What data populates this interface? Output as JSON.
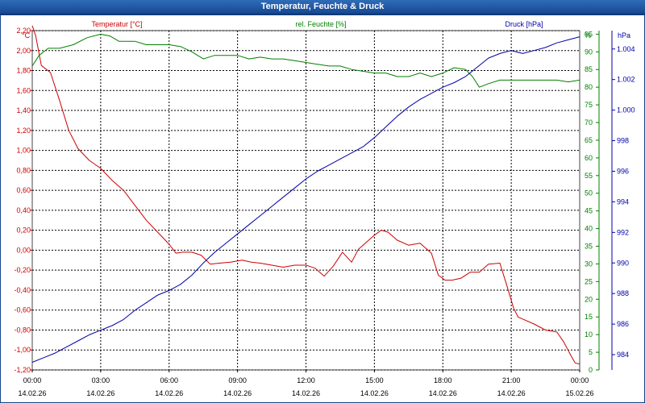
{
  "window": {
    "title": "Temperatur, Feuchte & Druck"
  },
  "chart_data": {
    "type": "line",
    "title": "Temperatur, Feuchte & Druck",
    "colors": {
      "temperature": "#cc0000",
      "humidity": "#008000",
      "pressure": "#0000aa"
    },
    "grid": true,
    "x": {
      "range_hours": [
        0,
        24
      ],
      "ticks": [
        {
          "time": "00:00",
          "date": "14.02.26"
        },
        {
          "time": "03:00",
          "date": "14.02.26"
        },
        {
          "time": "06:00",
          "date": "14.02.26"
        },
        {
          "time": "09:00",
          "date": "14.02.26"
        },
        {
          "time": "12:00",
          "date": "14.02.26"
        },
        {
          "time": "15:00",
          "date": "14.02.26"
        },
        {
          "time": "18:00",
          "date": "14.02.26"
        },
        {
          "time": "21:00",
          "date": "14.02.26"
        },
        {
          "time": "00:00",
          "date": "15.02.26"
        }
      ]
    },
    "axes": {
      "temperature": {
        "label": "Temperatur [°C]",
        "unit": "°C",
        "range": [
          -1.2,
          2.2
        ],
        "ticks": [
          "2,20",
          "2,00",
          "1,80",
          "1,60",
          "1,40",
          "1,20",
          "1,00",
          "0,80",
          "0,60",
          "0,40",
          "0,20",
          "0,00",
          "-0,20",
          "-0,40",
          "-0,60",
          "-0,80",
          "-1,00",
          "-1,20"
        ]
      },
      "humidity": {
        "label": "rel. Feuchte [%]",
        "unit": "%",
        "range": [
          0,
          96
        ],
        "ticks": [
          "95",
          "90",
          "85",
          "80",
          "75",
          "70",
          "65",
          "60",
          "55",
          "50",
          "45",
          "40",
          "35",
          "30",
          "25",
          "20",
          "15",
          "10",
          "5",
          "0"
        ]
      },
      "pressure": {
        "label": "Druck [hPa]",
        "unit": "hPa",
        "range": [
          983,
          1005.2
        ],
        "ticks": [
          "1.004",
          "1.002",
          "1.000",
          "998",
          "996",
          "994",
          "992",
          "990",
          "988",
          "986",
          "984"
        ]
      }
    },
    "series": [
      {
        "name": "Temperatur [°C]",
        "axis": "temperature",
        "x": [
          0,
          0.15,
          0.4,
          0.8,
          1.2,
          1.6,
          2.0,
          2.5,
          3.0,
          3.5,
          4.0,
          4.5,
          5.0,
          5.5,
          6.0,
          6.3,
          6.6,
          7.0,
          7.4,
          7.8,
          8.2,
          8.7,
          9.2,
          9.6,
          10.0,
          10.5,
          11.0,
          11.5,
          12.0,
          12.4,
          12.8,
          13.2,
          13.6,
          14.0,
          14.3,
          14.6,
          15.0,
          15.3,
          15.6,
          16.0,
          16.5,
          17.0,
          17.5,
          17.8,
          18.1,
          18.4,
          18.8,
          19.2,
          19.6,
          20.0,
          20.5,
          20.8,
          21.1,
          21.3,
          21.6,
          22.0,
          22.5,
          23.0,
          23.3,
          23.6,
          23.8,
          24.0
        ],
        "values": [
          2.25,
          2.15,
          1.85,
          1.78,
          1.5,
          1.2,
          1.02,
          0.9,
          0.82,
          0.7,
          0.6,
          0.45,
          0.3,
          0.18,
          0.06,
          -0.03,
          -0.02,
          -0.02,
          -0.05,
          -0.14,
          -0.13,
          -0.12,
          -0.1,
          -0.12,
          -0.13,
          -0.15,
          -0.17,
          -0.15,
          -0.15,
          -0.18,
          -0.26,
          -0.16,
          -0.02,
          -0.12,
          0.01,
          0.07,
          0.15,
          0.2,
          0.18,
          0.1,
          0.05,
          0.07,
          -0.03,
          -0.25,
          -0.3,
          -0.3,
          -0.28,
          -0.22,
          -0.22,
          -0.14,
          -0.13,
          -0.35,
          -0.58,
          -0.67,
          -0.7,
          -0.74,
          -0.8,
          -0.82,
          -0.92,
          -1.05,
          -1.13,
          -1.14
        ]
      },
      {
        "name": "rel. Feuchte [%]",
        "axis": "humidity",
        "x": [
          0,
          0.3,
          0.7,
          1.2,
          1.8,
          2.4,
          3.0,
          3.4,
          3.8,
          4.5,
          5.0,
          5.5,
          6.0,
          6.5,
          7.0,
          7.5,
          8.0,
          8.5,
          9.0,
          9.5,
          10.0,
          10.5,
          11.0,
          11.5,
          12.0,
          12.5,
          13.0,
          13.5,
          14.0,
          14.5,
          15.0,
          15.5,
          16.0,
          16.5,
          17.0,
          17.5,
          18.0,
          18.5,
          19.0,
          19.3,
          19.6,
          20.0,
          20.5,
          21.0,
          21.5,
          22.0,
          22.5,
          23.0,
          23.5,
          24.0
        ],
        "values": [
          86,
          89,
          91,
          91,
          92,
          94,
          95,
          94.5,
          93,
          93,
          92,
          92,
          92,
          91.5,
          90,
          88,
          89,
          89,
          89,
          88,
          88.5,
          88,
          88,
          87.5,
          87,
          86.5,
          86,
          86,
          85,
          84.5,
          84,
          84,
          83,
          83,
          84,
          83,
          84,
          85.5,
          85,
          83,
          80,
          81,
          82,
          82,
          82,
          82,
          82,
          82,
          81.5,
          82
        ]
      },
      {
        "name": "Druck [hPa]",
        "axis": "pressure",
        "x": [
          0,
          0.5,
          1.0,
          1.5,
          2.0,
          2.5,
          3.0,
          3.5,
          4.0,
          4.5,
          5.0,
          5.5,
          6.0,
          6.5,
          7.0,
          7.5,
          8.0,
          8.5,
          9.0,
          9.5,
          10.0,
          10.5,
          11.0,
          11.5,
          12.0,
          12.5,
          13.0,
          13.5,
          14.0,
          14.5,
          15.0,
          15.5,
          16.0,
          16.5,
          17.0,
          17.5,
          18.0,
          18.5,
          19.0,
          19.5,
          20.0,
          20.5,
          21.0,
          21.5,
          22.0,
          22.5,
          23.0,
          23.5,
          24.0
        ],
        "values": [
          983.5,
          983.8,
          984.1,
          984.5,
          984.9,
          985.3,
          985.6,
          985.9,
          986.3,
          986.9,
          987.4,
          987.9,
          988.2,
          988.6,
          989.2,
          990.0,
          990.7,
          991.3,
          991.9,
          992.5,
          993.1,
          993.7,
          994.3,
          994.9,
          995.5,
          996.0,
          996.4,
          996.8,
          997.2,
          997.6,
          998.2,
          998.9,
          999.6,
          1000.2,
          1000.7,
          1001.1,
          1001.5,
          1001.8,
          1002.2,
          1002.8,
          1003.4,
          1003.7,
          1003.9,
          1003.7,
          1003.9,
          1004.1,
          1004.4,
          1004.6,
          1004.8
        ]
      }
    ]
  }
}
